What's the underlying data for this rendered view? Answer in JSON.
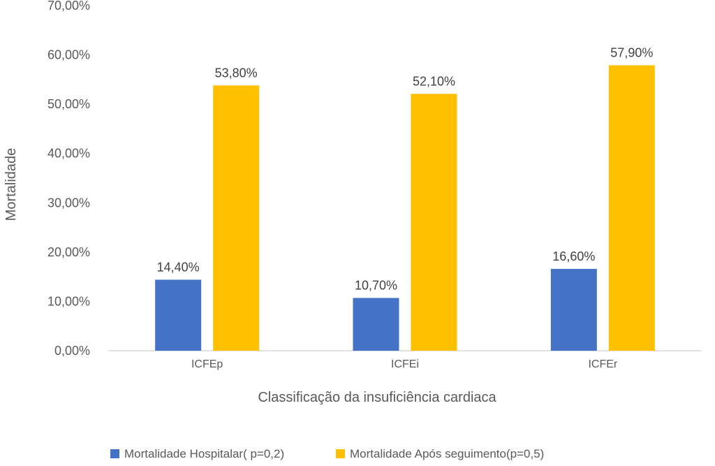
{
  "chart_data": {
    "type": "bar",
    "categories": [
      "ICFEp",
      "ICFEi",
      "ICFEr"
    ],
    "series": [
      {
        "name": "Mortalidade Hospitalar( p=0,2)",
        "values": [
          14.4,
          10.7,
          16.6
        ],
        "color": "#4472C4"
      },
      {
        "name": "Mortalidade Após seguimento(p=0,5)",
        "values": [
          53.8,
          52.1,
          57.9
        ],
        "color": "#FFC000"
      }
    ],
    "data_labels": [
      [
        "14,40%",
        "10,70%",
        "16,60%"
      ],
      [
        "53,80%",
        "52,10%",
        "57,90%"
      ]
    ],
    "y_ticks": [
      0,
      10,
      20,
      30,
      40,
      50,
      60,
      70
    ],
    "y_tick_labels": [
      "0,00%",
      "10,00%",
      "20,00%",
      "30,00%",
      "40,00%",
      "50,00%",
      "60,00%",
      "70,00%"
    ],
    "ylim": [
      0,
      70
    ],
    "xlabel": "Classificação da insuficiência cardiaca",
    "ylabel": "Mortalidade",
    "legend_position": "bottom",
    "grid": false
  }
}
